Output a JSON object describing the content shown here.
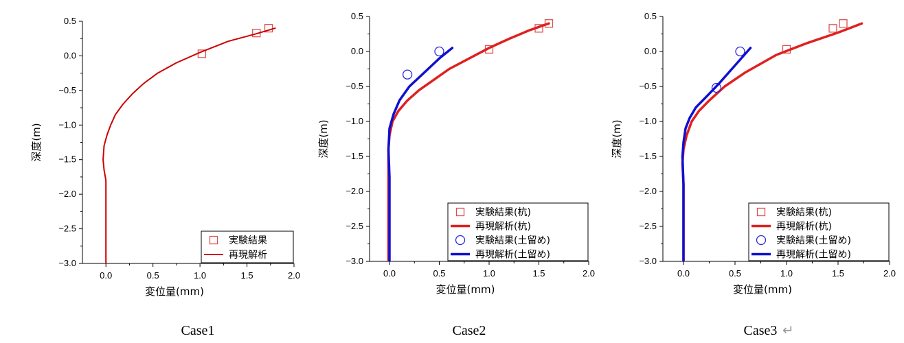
{
  "chart_data": [
    {
      "type": "line",
      "caption": "Case1",
      "xlabel": "変位量(mm)",
      "ylabel": "深度(m)",
      "xlim": [
        -0.25,
        2.0
      ],
      "ylim": [
        -3.0,
        0.5
      ],
      "xticks": [
        "0.0",
        "0.5",
        "1.0",
        "1.5",
        "2.0"
      ],
      "yticks": [
        "0.5",
        "0.0",
        "−0.5",
        "−1.0",
        "−1.5",
        "−2.0",
        "−2.5",
        "−3.0"
      ],
      "grid": false,
      "legend_position": "bottom-right",
      "series": [
        {
          "name": "実験結果",
          "kind": "scatter",
          "marker": "square",
          "color": "#d9534f",
          "x": [
            1.02,
            1.6,
            1.73
          ],
          "y": [
            0.03,
            0.33,
            0.4
          ]
        },
        {
          "name": "再現解析",
          "kind": "line",
          "color": "#cc0000",
          "x": [
            1.8,
            1.6,
            1.3,
            1.0,
            0.75,
            0.55,
            0.4,
            0.28,
            0.18,
            0.1,
            0.05,
            0.01,
            -0.02,
            -0.03,
            -0.02,
            0.0,
            0.0,
            0.0
          ],
          "y": [
            0.4,
            0.32,
            0.21,
            0.05,
            -0.1,
            -0.25,
            -0.4,
            -0.55,
            -0.7,
            -0.85,
            -1.0,
            -1.15,
            -1.3,
            -1.5,
            -1.65,
            -1.8,
            -2.4,
            -3.0
          ]
        }
      ]
    },
    {
      "type": "line",
      "caption": "Case2",
      "xlabel": "変位量(mm)",
      "ylabel": "深度(m)",
      "xlim": [
        -0.2,
        2.0
      ],
      "ylim": [
        -3.0,
        0.5
      ],
      "xticks": [
        "0.0",
        "0.5",
        "1.0",
        "1.5",
        "2.0"
      ],
      "yticks": [
        "0.5",
        "0.0",
        "−0.5",
        "−1.0",
        "−1.5",
        "−2.0",
        "−2.5",
        "−3.0"
      ],
      "grid": false,
      "legend_position": "bottom-right",
      "series": [
        {
          "name": "実験結果(杭)",
          "kind": "scatter",
          "marker": "square",
          "color": "#d9534f",
          "x": [
            1.0,
            1.5,
            1.6
          ],
          "y": [
            0.03,
            0.33,
            0.4
          ]
        },
        {
          "name": "再現解析(杭)",
          "kind": "line",
          "color": "#e02020",
          "x": [
            1.6,
            1.4,
            1.2,
            1.0,
            0.8,
            0.6,
            0.45,
            0.3,
            0.18,
            0.09,
            0.03,
            0.0,
            -0.01,
            -0.01,
            -0.01,
            -0.01
          ],
          "y": [
            0.4,
            0.3,
            0.18,
            0.05,
            -0.1,
            -0.25,
            -0.4,
            -0.55,
            -0.7,
            -0.85,
            -1.0,
            -1.2,
            -1.4,
            -1.7,
            -2.2,
            -3.0
          ]
        },
        {
          "name": "実験結果(土留め)",
          "kind": "scatter",
          "marker": "circle",
          "color": "#2a2adf",
          "x": [
            0.18,
            0.5
          ],
          "y": [
            -0.33,
            0.0
          ]
        },
        {
          "name": "再現解析(土留め)",
          "kind": "line",
          "color": "#1010d0",
          "x": [
            0.63,
            0.5,
            0.35,
            0.2,
            0.1,
            0.04,
            0.0,
            -0.01,
            0.0,
            0.0,
            0.0
          ],
          "y": [
            0.05,
            -0.1,
            -0.3,
            -0.5,
            -0.7,
            -0.9,
            -1.1,
            -1.4,
            -1.8,
            -2.4,
            -3.0
          ]
        }
      ]
    },
    {
      "type": "line",
      "caption": "Case3",
      "caption_mark": "↵",
      "xlabel": "変位量(mm)",
      "ylabel": "深度(m)",
      "xlim": [
        -0.2,
        2.0
      ],
      "ylim": [
        -3.0,
        0.5
      ],
      "xticks": [
        "0.0",
        "0.5",
        "1.0",
        "1.5",
        "2.0"
      ],
      "yticks": [
        "0.5",
        "0.0",
        "−0.5",
        "−1.0",
        "−1.5",
        "−2.0",
        "−2.5",
        "−3.0"
      ],
      "grid": false,
      "legend_position": "bottom-right",
      "series": [
        {
          "name": "実験結果(杭)",
          "kind": "scatter",
          "marker": "square",
          "color": "#d9534f",
          "x": [
            1.0,
            1.45,
            1.55
          ],
          "y": [
            0.03,
            0.33,
            0.4
          ]
        },
        {
          "name": "再現解析(杭)",
          "kind": "line",
          "color": "#e02020",
          "x": [
            1.73,
            1.5,
            1.2,
            0.9,
            0.6,
            0.4,
            0.25,
            0.15,
            0.08,
            0.03,
            0.0,
            -0.01,
            0.0,
            0.0,
            0.0
          ],
          "y": [
            0.4,
            0.27,
            0.12,
            -0.05,
            -0.3,
            -0.5,
            -0.7,
            -0.85,
            -1.0,
            -1.2,
            -1.4,
            -1.6,
            -1.9,
            -2.4,
            -3.0
          ]
        },
        {
          "name": "実験結果(土留め)",
          "kind": "scatter",
          "marker": "circle",
          "color": "#2a2adf",
          "x": [
            0.32,
            0.55
          ],
          "y": [
            -0.52,
            0.0
          ]
        },
        {
          "name": "再現解析(土留め)",
          "kind": "line",
          "color": "#1010d0",
          "x": [
            0.65,
            0.5,
            0.35,
            0.22,
            0.12,
            0.06,
            0.02,
            0.0,
            -0.01,
            0.0,
            0.0,
            0.0
          ],
          "y": [
            0.05,
            -0.2,
            -0.45,
            -0.65,
            -0.8,
            -0.95,
            -1.1,
            -1.3,
            -1.5,
            -1.9,
            -2.4,
            -3.0
          ]
        }
      ]
    }
  ]
}
